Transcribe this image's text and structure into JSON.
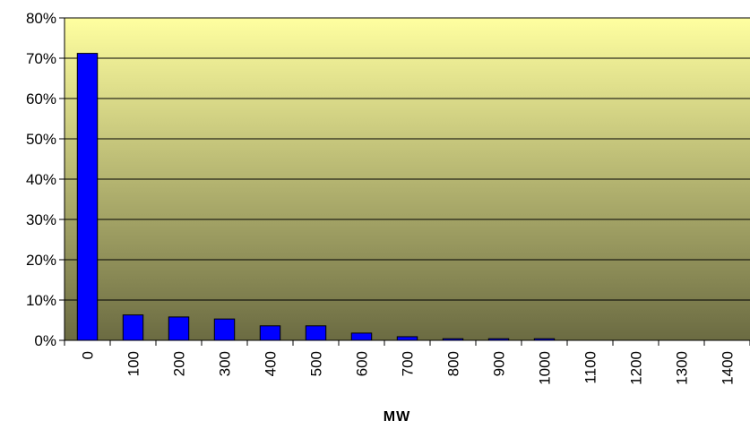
{
  "chart_data": {
    "type": "bar",
    "title": "",
    "xlabel": "MW",
    "ylabel": "",
    "categories": [
      "0",
      "100",
      "200",
      "300",
      "400",
      "500",
      "600",
      "700",
      "800",
      "900",
      "1000",
      "1100",
      "1200",
      "1300",
      "1400"
    ],
    "values": [
      71.2,
      6.3,
      5.8,
      5.3,
      3.6,
      3.6,
      1.8,
      0.9,
      0.4,
      0.4,
      0.4,
      0,
      0,
      0,
      0
    ],
    "ylim": [
      0,
      80
    ],
    "yticks": [
      0,
      10,
      20,
      30,
      40,
      50,
      60,
      70,
      80
    ],
    "ytick_format": "percent",
    "grid": true,
    "legend": "none",
    "colors": {
      "bar_fill": "#0000ff",
      "bar_stroke": "#000000",
      "plot_bg_top": "#ffffa0",
      "plot_bg_bottom": "#6b6b42",
      "gridline": "#000000"
    }
  }
}
